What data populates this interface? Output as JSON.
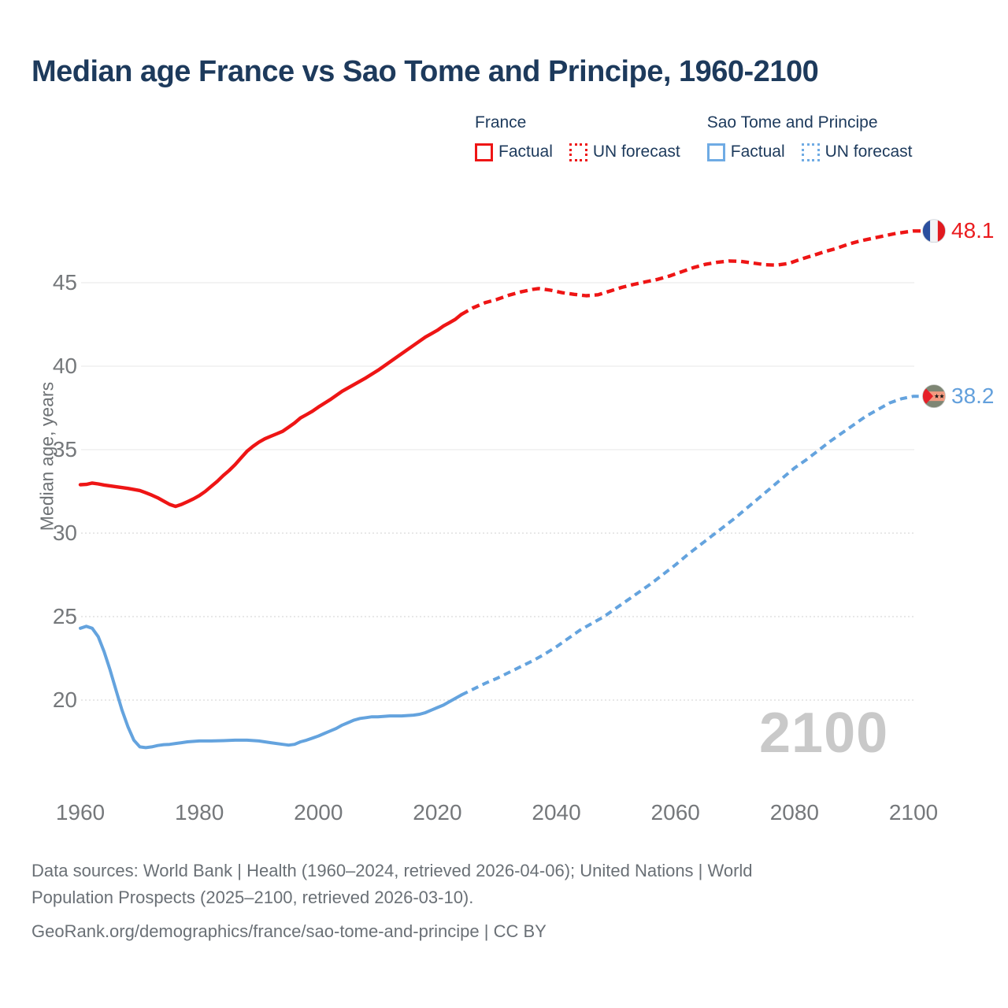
{
  "title": "Median age France vs Sao Tome and Principe, 1960-2100",
  "watermark": "2100",
  "legend": {
    "groups": [
      {
        "name": "France",
        "color": "#ee1515",
        "items": [
          {
            "label": "Factual",
            "style": "solid"
          },
          {
            "label": "UN forecast",
            "style": "dotted"
          }
        ]
      },
      {
        "name": "Sao Tome and Principe",
        "color": "#6fabe4",
        "items": [
          {
            "label": "Factual",
            "style": "solid"
          },
          {
            "label": "UN forecast",
            "style": "dotted"
          }
        ]
      }
    ]
  },
  "footer": {
    "sources": "Data sources: World Bank | Health (1960–2024, retrieved 2026-04-06); United Nations | World\nPopulation Prospects (2025–2100, retrieved 2026-03-10).",
    "attribution": "GeoRank.org/demographics/france/sao-tome-and-principe | CC BY"
  },
  "chart_data": {
    "type": "line",
    "title": "Median age France vs Sao Tome and Principe, 1960-2100",
    "xlabel": "",
    "ylabel": "Median age, years",
    "xlim": [
      1960,
      2100
    ],
    "ylim": [
      16.5,
      49
    ],
    "grid": "horizontal",
    "x_ticks": [
      1960,
      1980,
      2000,
      2020,
      2040,
      2060,
      2080,
      2100
    ],
    "y_ticks": [
      {
        "value": 45,
        "line": "solid"
      },
      {
        "value": 40,
        "line": "solid"
      },
      {
        "value": 35,
        "line": "solid"
      },
      {
        "value": 30,
        "line": "dotted"
      },
      {
        "value": 25,
        "line": "dotted"
      },
      {
        "value": 20,
        "line": "dotted"
      }
    ],
    "series": [
      {
        "id": "france-factual",
        "name": "France — Factual",
        "color": "#ee1515",
        "style": "solid",
        "width": 4.4,
        "points": [
          [
            1960,
            32.9
          ],
          [
            1961,
            32.92
          ],
          [
            1962,
            33.0
          ],
          [
            1963,
            32.95
          ],
          [
            1964,
            32.88
          ],
          [
            1966,
            32.78
          ],
          [
            1968,
            32.68
          ],
          [
            1970,
            32.55
          ],
          [
            1971,
            32.42
          ],
          [
            1972,
            32.28
          ],
          [
            1973,
            32.12
          ],
          [
            1974,
            31.92
          ],
          [
            1975,
            31.72
          ],
          [
            1976,
            31.6
          ],
          [
            1977,
            31.72
          ],
          [
            1978,
            31.88
          ],
          [
            1979,
            32.05
          ],
          [
            1980,
            32.25
          ],
          [
            1981,
            32.5
          ],
          [
            1982,
            32.8
          ],
          [
            1983,
            33.1
          ],
          [
            1984,
            33.45
          ],
          [
            1985,
            33.75
          ],
          [
            1986,
            34.1
          ],
          [
            1987,
            34.5
          ],
          [
            1988,
            34.9
          ],
          [
            1989,
            35.2
          ],
          [
            1990,
            35.45
          ],
          [
            1991,
            35.65
          ],
          [
            1992,
            35.8
          ],
          [
            1993,
            35.95
          ],
          [
            1994,
            36.1
          ],
          [
            1995,
            36.35
          ],
          [
            1996,
            36.6
          ],
          [
            1997,
            36.9
          ],
          [
            1998,
            37.1
          ],
          [
            1999,
            37.3
          ],
          [
            2000,
            37.55
          ],
          [
            2002,
            38.0
          ],
          [
            2004,
            38.5
          ],
          [
            2006,
            38.9
          ],
          [
            2008,
            39.3
          ],
          [
            2010,
            39.75
          ],
          [
            2012,
            40.25
          ],
          [
            2014,
            40.75
          ],
          [
            2016,
            41.25
          ],
          [
            2018,
            41.75
          ],
          [
            2019,
            41.95
          ],
          [
            2020,
            42.15
          ],
          [
            2021,
            42.4
          ],
          [
            2022,
            42.6
          ],
          [
            2023,
            42.8
          ],
          [
            2024,
            43.1
          ]
        ]
      },
      {
        "id": "france-forecast",
        "name": "France — UN forecast",
        "color": "#ee1515",
        "style": "dashed",
        "width": 4.4,
        "dash": "10 6",
        "points": [
          [
            2024,
            43.1
          ],
          [
            2026,
            43.5
          ],
          [
            2028,
            43.8
          ],
          [
            2030,
            44.0
          ],
          [
            2032,
            44.25
          ],
          [
            2034,
            44.45
          ],
          [
            2036,
            44.6
          ],
          [
            2037,
            44.65
          ],
          [
            2039,
            44.55
          ],
          [
            2041,
            44.4
          ],
          [
            2043,
            44.3
          ],
          [
            2045,
            44.22
          ],
          [
            2047,
            44.28
          ],
          [
            2049,
            44.5
          ],
          [
            2051,
            44.72
          ],
          [
            2053,
            44.9
          ],
          [
            2055,
            45.05
          ],
          [
            2057,
            45.2
          ],
          [
            2059,
            45.4
          ],
          [
            2061,
            45.65
          ],
          [
            2063,
            45.9
          ],
          [
            2065,
            46.1
          ],
          [
            2067,
            46.22
          ],
          [
            2069,
            46.3
          ],
          [
            2071,
            46.28
          ],
          [
            2073,
            46.18
          ],
          [
            2075,
            46.08
          ],
          [
            2077,
            46.05
          ],
          [
            2079,
            46.15
          ],
          [
            2081,
            46.4
          ],
          [
            2083,
            46.62
          ],
          [
            2085,
            46.85
          ],
          [
            2087,
            47.05
          ],
          [
            2089,
            47.3
          ],
          [
            2091,
            47.5
          ],
          [
            2093,
            47.65
          ],
          [
            2095,
            47.8
          ],
          [
            2097,
            47.95
          ],
          [
            2099,
            48.05
          ],
          [
            2100,
            48.1
          ]
        ]
      },
      {
        "id": "sao-tome-factual",
        "name": "Sao Tome and Principe — Factual",
        "color": "#64a3de",
        "style": "solid",
        "width": 4,
        "points": [
          [
            1960,
            24.3
          ],
          [
            1961,
            24.42
          ],
          [
            1962,
            24.3
          ],
          [
            1963,
            23.8
          ],
          [
            1964,
            22.9
          ],
          [
            1965,
            21.8
          ],
          [
            1966,
            20.6
          ],
          [
            1967,
            19.4
          ],
          [
            1968,
            18.4
          ],
          [
            1969,
            17.6
          ],
          [
            1970,
            17.2
          ],
          [
            1971,
            17.15
          ],
          [
            1972,
            17.2
          ],
          [
            1973,
            17.28
          ],
          [
            1974,
            17.33
          ],
          [
            1975,
            17.35
          ],
          [
            1976,
            17.4
          ],
          [
            1977,
            17.45
          ],
          [
            1978,
            17.5
          ],
          [
            1980,
            17.55
          ],
          [
            1982,
            17.55
          ],
          [
            1984,
            17.57
          ],
          [
            1986,
            17.6
          ],
          [
            1988,
            17.6
          ],
          [
            1990,
            17.55
          ],
          [
            1992,
            17.45
          ],
          [
            1994,
            17.35
          ],
          [
            1995,
            17.3
          ],
          [
            1996,
            17.35
          ],
          [
            1997,
            17.5
          ],
          [
            1998,
            17.6
          ],
          [
            1999,
            17.72
          ],
          [
            2000,
            17.85
          ],
          [
            2001,
            18.0
          ],
          [
            2002,
            18.15
          ],
          [
            2003,
            18.3
          ],
          [
            2004,
            18.5
          ],
          [
            2005,
            18.65
          ],
          [
            2006,
            18.8
          ],
          [
            2007,
            18.9
          ],
          [
            2008,
            18.95
          ],
          [
            2009,
            19.0
          ],
          [
            2010,
            19.0
          ],
          [
            2012,
            19.05
          ],
          [
            2014,
            19.05
          ],
          [
            2016,
            19.1
          ],
          [
            2017,
            19.15
          ],
          [
            2018,
            19.25
          ],
          [
            2019,
            19.4
          ],
          [
            2020,
            19.55
          ],
          [
            2021,
            19.7
          ],
          [
            2022,
            19.9
          ],
          [
            2023,
            20.1
          ],
          [
            2024,
            20.3
          ]
        ]
      },
      {
        "id": "sao-tome-forecast",
        "name": "Sao Tome and Principe — UN forecast",
        "color": "#64a3de",
        "style": "dashed",
        "width": 4,
        "dash": "9 6",
        "points": [
          [
            2024,
            20.3
          ],
          [
            2026,
            20.65
          ],
          [
            2028,
            21.0
          ],
          [
            2030,
            21.3
          ],
          [
            2032,
            21.65
          ],
          [
            2034,
            22.0
          ],
          [
            2036,
            22.35
          ],
          [
            2038,
            22.75
          ],
          [
            2040,
            23.2
          ],
          [
            2042,
            23.7
          ],
          [
            2044,
            24.2
          ],
          [
            2046,
            24.6
          ],
          [
            2048,
            25.0
          ],
          [
            2050,
            25.5
          ],
          [
            2052,
            26.0
          ],
          [
            2054,
            26.5
          ],
          [
            2056,
            27.0
          ],
          [
            2058,
            27.55
          ],
          [
            2060,
            28.1
          ],
          [
            2062,
            28.7
          ],
          [
            2064,
            29.25
          ],
          [
            2066,
            29.8
          ],
          [
            2068,
            30.35
          ],
          [
            2070,
            30.9
          ],
          [
            2072,
            31.5
          ],
          [
            2074,
            32.1
          ],
          [
            2076,
            32.7
          ],
          [
            2078,
            33.3
          ],
          [
            2080,
            33.9
          ],
          [
            2082,
            34.4
          ],
          [
            2084,
            34.95
          ],
          [
            2086,
            35.5
          ],
          [
            2088,
            36.0
          ],
          [
            2090,
            36.5
          ],
          [
            2092,
            37.0
          ],
          [
            2094,
            37.4
          ],
          [
            2096,
            37.8
          ],
          [
            2098,
            38.05
          ],
          [
            2100,
            38.2
          ]
        ]
      }
    ],
    "end_labels": [
      {
        "series": "France",
        "value": "48.1",
        "y": 48.1,
        "label_color": "#ea1c1f",
        "flag": "france"
      },
      {
        "series": "Sao Tome and Principe",
        "value": "38.2",
        "y": 38.2,
        "label_color": "#63a0dc",
        "flag": "sao-tome-and-principe"
      }
    ],
    "flag_colors": {
      "france": {
        "left": "#2b4f9e",
        "mid": "#f2f3f5",
        "right": "#e1191f"
      },
      "sao_tome": {
        "band": "#7e8674",
        "mid": "#f29a80",
        "triangle": "#e62028",
        "stars": "#1a1a1a"
      }
    }
  }
}
